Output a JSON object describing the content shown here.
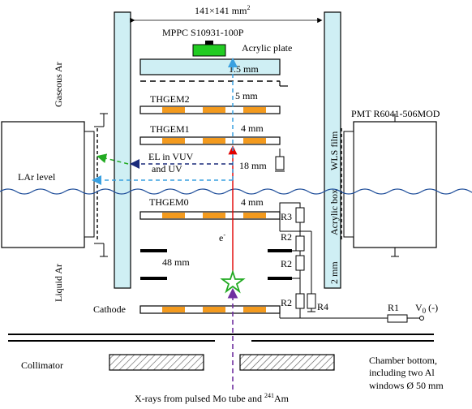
{
  "labels": {
    "dimension": "141×141 mm",
    "dimension_sup": "2",
    "mppc": "MPPC S10931-100P",
    "acrylic_plate": "Acrylic plate",
    "gap_15": "1.5 mm",
    "gap_5": "5 mm",
    "thgem2": "THGEM2",
    "thgem1": "THGEM1",
    "gap_4_top": "4 mm",
    "el_line1": "EL in VUV",
    "el_line2": "and UV",
    "gap_18": "18 mm",
    "gaseous_ar": "Gaseous Ar",
    "lar_level": "LAr level",
    "wls_film": "WLS film",
    "acrylic_box": "Acrylic box",
    "pmt": "PMT R6041-506MOD",
    "thgem0": "THGEM0",
    "gap_4_bottom": "4 mm",
    "r3": "R3",
    "r2_a": "R2",
    "r2_b": "R2",
    "r2_c": "R2",
    "r4": "R4",
    "electron": "e",
    "electron_sup": "-",
    "gap_48": "48 mm",
    "liquid_ar": "Liquid Ar",
    "gap_2": "2 mm",
    "cathode": "Cathode",
    "r1": "R1",
    "v0": "V",
    "v0_sub": "0",
    "v0_sign": " (-)",
    "collimator": "Collimator",
    "chamber_line1": "Chamber bottom,",
    "chamber_line2": "including two Al",
    "chamber_line3": "windows Ø 50 mm",
    "xray_prefix": "X-rays from pulsed Mo tube and ",
    "xray_sup": "241",
    "xray_suffix": "Am"
  },
  "colors": {
    "window": "#cfeff4",
    "orange": "#f39a1e",
    "mppc": "#22cc22",
    "electron_track": "#e00000",
    "blue_dashed": "#3aa0e0",
    "navy_dashed": "#1a2a7a",
    "green_dashed": "#22aa22",
    "purple_dashed": "#7030a0",
    "lar_wave": "#1f4e9a",
    "star": "#22aa22"
  }
}
